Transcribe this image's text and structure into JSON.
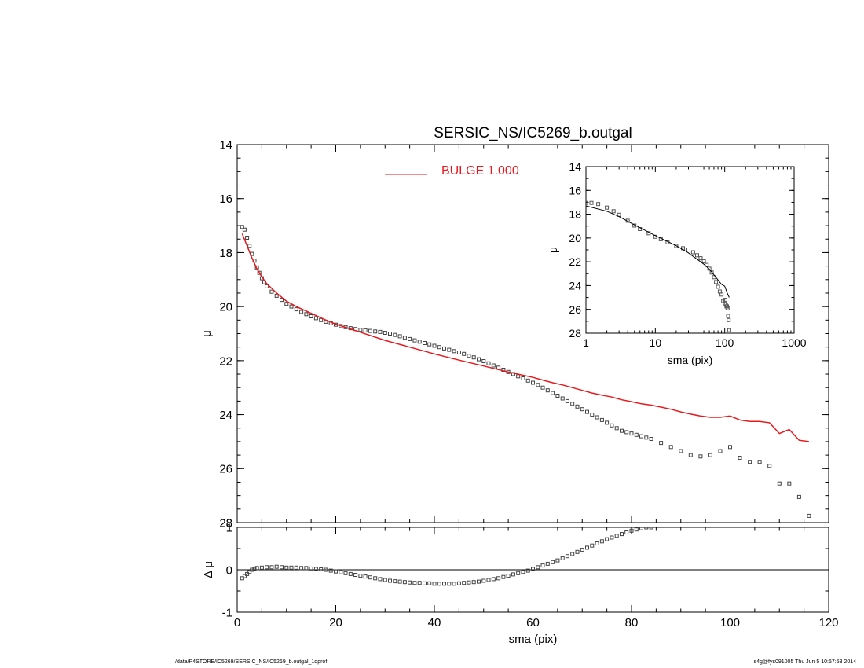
{
  "footer": {
    "left": "/data/P4STORE/IC5269/SERSIC_NS/IC5269_b.outgal_1dprof",
    "right": "s4g@fys091005  Thu Jun  5 10:57:53 2014"
  },
  "chart_data": [
    {
      "type": "scatter",
      "panel": "main",
      "title": "SERSIC_NS/IC5269_b.outgal",
      "xlabel": "",
      "ylabel": "μ",
      "xlim": [
        0,
        120
      ],
      "ylim": [
        28,
        14
      ],
      "y_inverted": true,
      "xticks": [
        0,
        20,
        40,
        60,
        80,
        100,
        120
      ],
      "yticks": [
        14,
        16,
        18,
        20,
        22,
        24,
        26,
        28
      ],
      "legend": {
        "placement": "top-center",
        "entries": [
          "BULGE  1.000"
        ]
      },
      "colors": {
        "model": "#e8191e",
        "data": "#555555"
      },
      "series": [
        {
          "name": "data",
          "marker": "square",
          "x": [
            1,
            1.5,
            2,
            2.5,
            3,
            3.5,
            4,
            4.5,
            5,
            5.5,
            6,
            7,
            8,
            9,
            10,
            11,
            12,
            13,
            14,
            15,
            16,
            17,
            18,
            19,
            20,
            21,
            22,
            23,
            24,
            25,
            26,
            27,
            28,
            29,
            30,
            31,
            32,
            33,
            34,
            35,
            36,
            37,
            38,
            39,
            40,
            41,
            42,
            43,
            44,
            45,
            46,
            47,
            48,
            49,
            50,
            51,
            52,
            53,
            54,
            55,
            56,
            57,
            58,
            59,
            60,
            61,
            62,
            63,
            64,
            65,
            66,
            67,
            68,
            69,
            70,
            71,
            72,
            73,
            74,
            75,
            76,
            77,
            78,
            79,
            80,
            81,
            82,
            83,
            84,
            86,
            88,
            90,
            92,
            94,
            96,
            98,
            100,
            102,
            104,
            106,
            108,
            110,
            112,
            114,
            116
          ],
          "y": [
            17.05,
            17.15,
            17.45,
            17.75,
            18.05,
            18.3,
            18.55,
            18.75,
            18.95,
            19.1,
            19.25,
            19.45,
            19.6,
            19.75,
            19.9,
            20.0,
            20.1,
            20.2,
            20.28,
            20.36,
            20.43,
            20.5,
            20.56,
            20.62,
            20.67,
            20.72,
            20.76,
            20.8,
            20.83,
            20.86,
            20.88,
            20.9,
            20.92,
            20.94,
            20.97,
            21.0,
            21.05,
            21.1,
            21.15,
            21.2,
            21.25,
            21.3,
            21.35,
            21.4,
            21.45,
            21.5,
            21.55,
            21.6,
            21.65,
            21.7,
            21.75,
            21.82,
            21.88,
            21.95,
            22.02,
            22.1,
            22.18,
            22.26,
            22.34,
            22.42,
            22.5,
            22.58,
            22.66,
            22.74,
            22.82,
            22.9,
            23.0,
            23.1,
            23.2,
            23.3,
            23.4,
            23.5,
            23.6,
            23.7,
            23.8,
            23.9,
            24.0,
            24.1,
            24.2,
            24.3,
            24.4,
            24.5,
            24.6,
            24.65,
            24.7,
            24.75,
            24.8,
            24.85,
            24.9,
            25.05,
            25.2,
            25.35,
            25.5,
            25.55,
            25.5,
            25.35,
            25.2,
            25.6,
            25.75,
            25.75,
            25.9,
            26.55,
            26.55,
            27.05,
            27.75
          ]
        },
        {
          "name": "BULGE  1.000",
          "line": true,
          "x": [
            1,
            2,
            3,
            4,
            5,
            6,
            8,
            10,
            12,
            15,
            18,
            20,
            25,
            30,
            35,
            40,
            45,
            50,
            55,
            60,
            62,
            64,
            66,
            68,
            70,
            72,
            74,
            76,
            78,
            80,
            82,
            84,
            86,
            88,
            90,
            92,
            94,
            96,
            98,
            100,
            102,
            104,
            106,
            108,
            110,
            112,
            114,
            116
          ],
          "y": [
            17.3,
            17.75,
            18.2,
            18.6,
            18.9,
            19.15,
            19.5,
            19.8,
            20.0,
            20.25,
            20.5,
            20.65,
            20.95,
            21.25,
            21.5,
            21.75,
            21.98,
            22.2,
            22.42,
            22.62,
            22.72,
            22.82,
            22.9,
            23.0,
            23.1,
            23.2,
            23.28,
            23.35,
            23.45,
            23.52,
            23.6,
            23.65,
            23.72,
            23.8,
            23.9,
            23.98,
            24.05,
            24.1,
            24.1,
            24.05,
            24.2,
            24.25,
            24.25,
            24.3,
            24.7,
            24.55,
            24.95,
            25.0
          ]
        }
      ]
    },
    {
      "type": "scatter",
      "panel": "residual",
      "xlabel": "sma (pix)",
      "ylabel": "Δ μ",
      "xlim": [
        0,
        120
      ],
      "ylim": [
        -1,
        1
      ],
      "xticks": [
        0,
        20,
        40,
        60,
        80,
        100,
        120
      ],
      "yticks": [
        -1,
        0,
        1
      ],
      "series": [
        {
          "name": "residual",
          "marker": "square",
          "x": [
            1,
            1.5,
            2,
            2.5,
            3,
            3.5,
            4,
            5,
            6,
            7,
            8,
            9,
            10,
            11,
            12,
            13,
            14,
            15,
            16,
            17,
            18,
            19,
            20,
            21,
            22,
            23,
            24,
            25,
            26,
            27,
            28,
            29,
            30,
            31,
            32,
            33,
            34,
            35,
            36,
            37,
            38,
            39,
            40,
            41,
            42,
            43,
            44,
            45,
            46,
            47,
            48,
            49,
            50,
            51,
            52,
            53,
            54,
            55,
            56,
            57,
            58,
            59,
            60,
            61,
            62,
            63,
            64,
            65,
            66,
            67,
            68,
            69,
            70,
            71,
            72,
            73,
            74,
            75,
            76,
            77,
            78,
            79,
            80,
            81,
            82,
            83,
            84
          ],
          "y": [
            -0.2,
            -0.15,
            -0.1,
            -0.05,
            0.0,
            0.02,
            0.04,
            0.05,
            0.06,
            0.06,
            0.07,
            0.06,
            0.05,
            0.05,
            0.05,
            0.04,
            0.04,
            0.03,
            0.02,
            0.01,
            0.0,
            -0.02,
            -0.04,
            -0.06,
            -0.08,
            -0.1,
            -0.12,
            -0.14,
            -0.16,
            -0.18,
            -0.2,
            -0.22,
            -0.24,
            -0.26,
            -0.27,
            -0.28,
            -0.29,
            -0.3,
            -0.31,
            -0.31,
            -0.32,
            -0.32,
            -0.33,
            -0.33,
            -0.33,
            -0.33,
            -0.33,
            -0.32,
            -0.31,
            -0.3,
            -0.29,
            -0.28,
            -0.26,
            -0.24,
            -0.22,
            -0.2,
            -0.17,
            -0.14,
            -0.11,
            -0.08,
            -0.05,
            -0.02,
            0.02,
            0.06,
            0.1,
            0.14,
            0.18,
            0.22,
            0.27,
            0.32,
            0.37,
            0.42,
            0.47,
            0.52,
            0.57,
            0.62,
            0.67,
            0.72,
            0.76,
            0.8,
            0.84,
            0.88,
            0.92,
            0.95,
            0.98,
            1.0,
            1.0
          ]
        }
      ]
    },
    {
      "type": "scatter",
      "panel": "inset",
      "xlabel": "sma (pix)",
      "ylabel": "μ",
      "x_scale": "log",
      "xlim": [
        1,
        1000
      ],
      "ylim": [
        28,
        14
      ],
      "y_inverted": true,
      "xticks": [
        1,
        10,
        100,
        1000
      ],
      "yticks": [
        14,
        16,
        18,
        20,
        22,
        24,
        26,
        28
      ],
      "series": [
        {
          "name": "data",
          "marker": "square",
          "x": [
            1,
            1.2,
            1.5,
            2,
            2.5,
            3,
            4,
            5,
            6,
            8,
            10,
            12,
            15,
            20,
            25,
            30,
            35,
            40,
            45,
            50,
            55,
            60,
            65,
            70,
            75,
            80,
            85,
            90,
            95,
            100,
            102,
            104,
            106,
            108,
            110,
            112,
            114,
            116
          ],
          "y": [
            17.05,
            17.05,
            17.15,
            17.45,
            17.75,
            18.05,
            18.55,
            18.95,
            19.25,
            19.6,
            19.9,
            20.1,
            20.36,
            20.67,
            20.86,
            20.97,
            21.2,
            21.45,
            21.7,
            21.95,
            22.26,
            22.58,
            22.9,
            23.3,
            23.7,
            24.1,
            24.5,
            24.75,
            25.3,
            25.5,
            25.2,
            25.6,
            25.75,
            25.75,
            25.9,
            26.55,
            26.9,
            27.75
          ]
        },
        {
          "name": "model",
          "line": true,
          "x": [
            1,
            2,
            3,
            5,
            10,
            20,
            30,
            50,
            60,
            70,
            80,
            90,
            100,
            110,
            116
          ],
          "y": [
            17.3,
            17.75,
            18.2,
            18.9,
            19.8,
            20.65,
            21.25,
            22.2,
            22.62,
            23.1,
            23.52,
            23.9,
            24.05,
            24.7,
            25.0
          ]
        }
      ]
    }
  ]
}
